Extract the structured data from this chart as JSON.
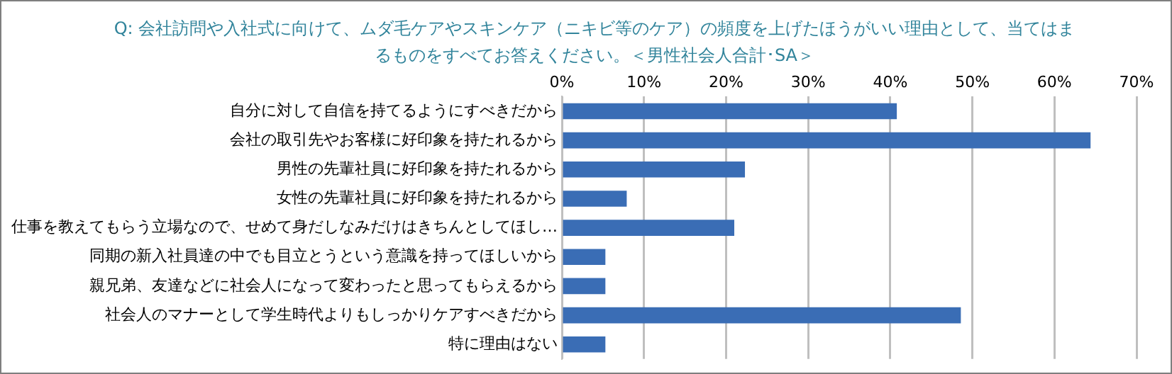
{
  "chart_data": {
    "type": "bar",
    "orientation": "horizontal",
    "title": "Q: 会社訪問や入社式に向けて、ムダ毛ケアやスキンケア（ニキビ等のケア）の頻度を上げたほうがいい理由として、当てはまるものをすべてお答えください。＜男性社会人合計･SA＞",
    "categories": [
      "自分に対して自信を持てるようにすべきだから",
      "会社の取引先やお客様に好印象を持たれるから",
      "男性の先輩社員に好印象を持たれるから",
      "女性の先輩社員に好印象を持たれるから",
      "仕事を教えてもらう立場なので、せめて身だしなみだけはきちんとしてほし…",
      "同期の新入社員達の中でも目立とうという意識を持ってほしいから",
      "親兄弟、友達などに社会人になって変わったと思ってもらえるから",
      "社会人のマナーとして学生時代よりもしっかりケアすべきだから",
      "特に理由はない"
    ],
    "values": [
      40.8,
      64.4,
      22.3,
      7.9,
      21.0,
      5.3,
      5.3,
      48.6,
      5.3
    ],
    "color": "#3a6db5",
    "xlim": [
      0,
      70
    ],
    "xticks": [
      {
        "value": 0,
        "label": "0%"
      },
      {
        "value": 10,
        "label": "10%"
      },
      {
        "value": 20,
        "label": "20%"
      },
      {
        "value": 30,
        "label": "30%"
      },
      {
        "value": 40,
        "label": "40%"
      },
      {
        "value": 50,
        "label": "50%"
      },
      {
        "value": 60,
        "label": "60%"
      },
      {
        "value": 70,
        "label": "70%"
      }
    ],
    "grid": "x",
    "legend": false
  }
}
